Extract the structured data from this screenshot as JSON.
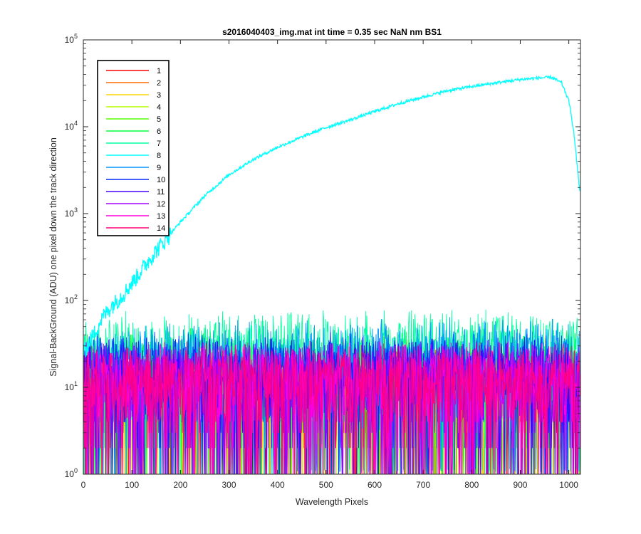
{
  "chart_data": {
    "type": "line",
    "title": "s2016040403_img.mat int time = 0.35 sec  NaN nm BS1",
    "xlabel": "Wavelength Pixels",
    "ylabel": "Signal-BackGround (ADU) one pixel down the track direction",
    "xlim": [
      0,
      1024
    ],
    "ylim": [
      1,
      100000
    ],
    "yscale": "log",
    "grid": false,
    "legend_position": "top-left",
    "x_ticks": [
      "0",
      "100",
      "200",
      "300",
      "400",
      "500",
      "600",
      "700",
      "800",
      "900",
      "1000"
    ],
    "y_ticks": [
      {
        "base": "10",
        "exp": "0"
      },
      {
        "base": "10",
        "exp": "1"
      },
      {
        "base": "10",
        "exp": "2"
      },
      {
        "base": "10",
        "exp": "3"
      },
      {
        "base": "10",
        "exp": "4"
      },
      {
        "base": "10",
        "exp": "5"
      }
    ],
    "series": [
      {
        "name": "1",
        "color": "#ff0000",
        "kind": "noise",
        "typical_max": 30
      },
      {
        "name": "2",
        "color": "#ff6a00",
        "kind": "noise",
        "typical_max": 30
      },
      {
        "name": "3",
        "color": "#ffd400",
        "kind": "noise",
        "typical_max": 30
      },
      {
        "name": "4",
        "color": "#b8ff00",
        "kind": "noise",
        "typical_max": 32
      },
      {
        "name": "5",
        "color": "#55ff00",
        "kind": "noise",
        "typical_max": 40
      },
      {
        "name": "6",
        "color": "#00ff40",
        "kind": "noise",
        "typical_max": 50
      },
      {
        "name": "7",
        "color": "#00ffa0",
        "kind": "noise",
        "typical_max": 80
      },
      {
        "name": "8",
        "color": "#00ffff",
        "kind": "signal",
        "x": [
          0,
          20,
          40,
          60,
          80,
          100,
          150,
          200,
          250,
          300,
          350,
          400,
          450,
          500,
          550,
          600,
          650,
          700,
          750,
          800,
          850,
          900,
          940,
          965,
          985,
          1000,
          1010,
          1020,
          1024
        ],
        "values": [
          25,
          40,
          65,
          90,
          115,
          160,
          380,
          800,
          1600,
          2800,
          4200,
          5800,
          7600,
          9800,
          12000,
          15000,
          18500,
          22000,
          26000,
          29000,
          32000,
          35000,
          36500,
          37000,
          32000,
          20000,
          9000,
          2500,
          1600
        ]
      },
      {
        "name": "9",
        "color": "#0096ff",
        "kind": "noise",
        "typical_max": 60
      },
      {
        "name": "10",
        "color": "#0028ff",
        "kind": "noise",
        "typical_max": 45
      },
      {
        "name": "11",
        "color": "#4b00ff",
        "kind": "noise",
        "typical_max": 40
      },
      {
        "name": "12",
        "color": "#aa00ff",
        "kind": "noise",
        "typical_max": 35
      },
      {
        "name": "13",
        "color": "#ff00dc",
        "kind": "noise",
        "typical_max": 35
      },
      {
        "name": "14",
        "color": "#ff0080",
        "kind": "noise",
        "typical_max": 35
      }
    ]
  }
}
